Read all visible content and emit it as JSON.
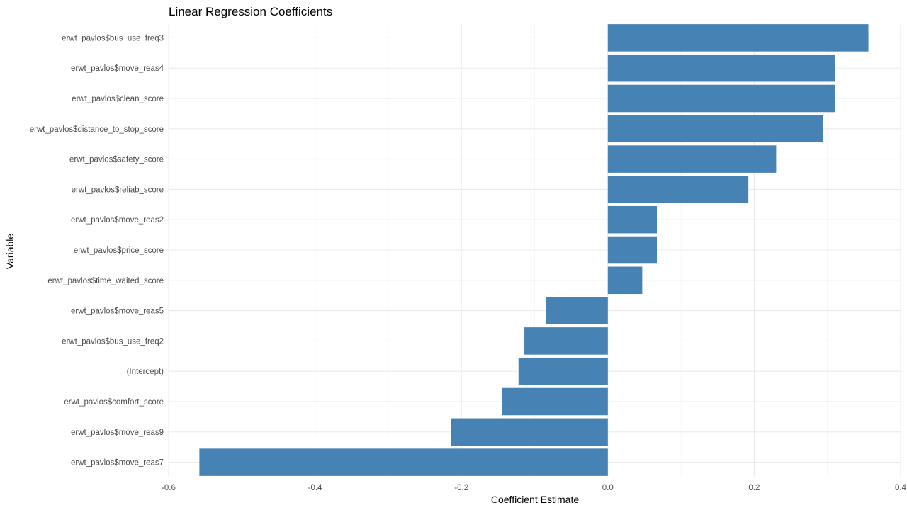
{
  "chart_data": {
    "type": "bar",
    "orientation": "horizontal",
    "title": "Linear Regression Coefficients",
    "xlabel": "Coefficient Estimate",
    "ylabel": "Variable",
    "xlim": [
      -0.6,
      0.4
    ],
    "xticks": [
      -0.6,
      -0.4,
      -0.2,
      0.0,
      0.2,
      0.4
    ],
    "xtick_labels": [
      "-0.6",
      "-0.4",
      "-0.2",
      "0.0",
      "0.2",
      "0.4"
    ],
    "grid": true,
    "bar_color": "#4682B4",
    "categories": [
      "erwt_pavlos$bus_use_freq3",
      "erwt_pavlos$move_reas4",
      "erwt_pavlos$clean_score",
      "erwt_pavlos$distance_to_stop_score",
      "erwt_pavlos$safety_score",
      "erwt_pavlos$reliab_score",
      "erwt_pavlos$move_reas2",
      "erwt_pavlos$price_score",
      "erwt_pavlos$time_waited_score",
      "erwt_pavlos$move_reas5",
      "erwt_pavlos$bus_use_freq2",
      "(Intercept)",
      "erwt_pavlos$comfort_score",
      "erwt_pavlos$move_reas9",
      "erwt_pavlos$move_reas7"
    ],
    "values": [
      0.356,
      0.31,
      0.31,
      0.294,
      0.23,
      0.192,
      0.067,
      0.067,
      0.047,
      -0.085,
      -0.114,
      -0.122,
      -0.145,
      -0.214,
      -0.558
    ]
  }
}
